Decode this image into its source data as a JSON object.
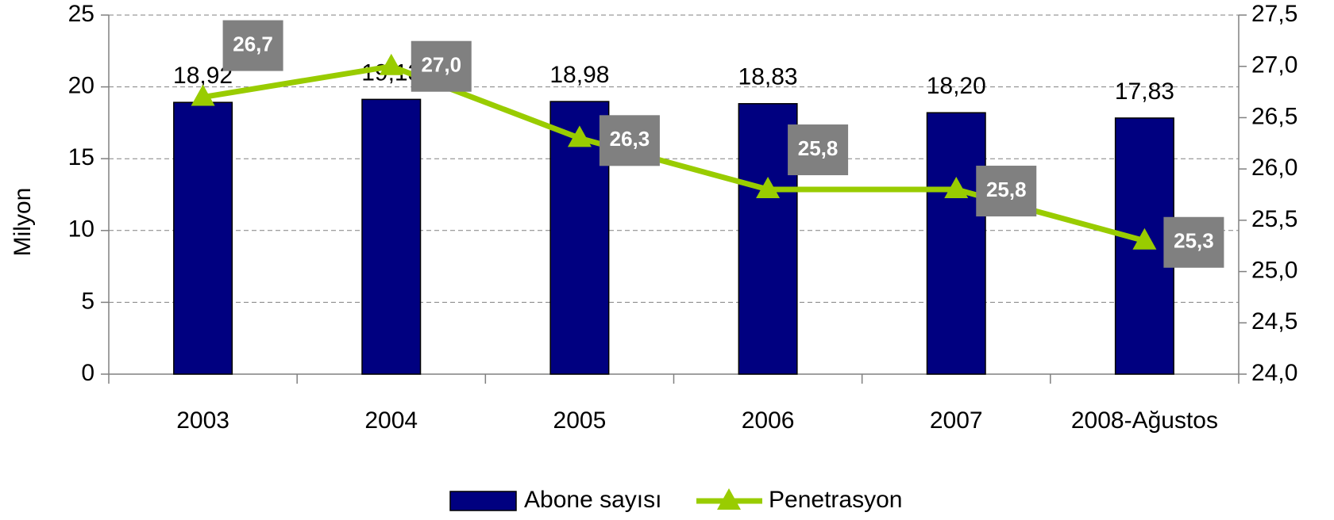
{
  "chart_data": {
    "type": "bar",
    "y_axis_label": "Milyon",
    "categories": [
      "2003",
      "2004",
      "2005",
      "2006",
      "2007",
      "2008-Ağustos"
    ],
    "series": [
      {
        "name": "Abone sayısı",
        "type": "bar",
        "color": "#000080",
        "values": [
          18.92,
          19.13,
          18.98,
          18.83,
          18.2,
          17.83
        ],
        "value_labels": [
          "18,92",
          "19,13",
          "18,98",
          "18,83",
          "18,20",
          "17,83"
        ]
      },
      {
        "name": "Penetrasyon",
        "type": "line",
        "axis": "y2",
        "color": "#99cc00",
        "values": [
          26.7,
          27.0,
          26.3,
          25.8,
          25.8,
          25.3
        ],
        "value_labels": [
          "26,7",
          "27,0",
          "26,3",
          "25,8",
          "25,8",
          "25,3"
        ]
      }
    ],
    "ylim": [
      0,
      25
    ],
    "yticks": [
      0,
      5,
      10,
      15,
      20,
      25
    ],
    "y2lim": [
      24.0,
      27.5
    ],
    "y2ticks": [
      {
        "value": 24.0,
        "label": "24,0"
      },
      {
        "value": 24.5,
        "label": "24,5"
      },
      {
        "value": 25.0,
        "label": "25,0"
      },
      {
        "value": 25.5,
        "label": "25,5"
      },
      {
        "value": 26.0,
        "label": "26,0"
      },
      {
        "value": 26.5,
        "label": "26,5"
      },
      {
        "value": 27.0,
        "label": "27,0"
      },
      {
        "value": 27.5,
        "label": "27,5"
      }
    ],
    "grid": true,
    "legend": "bottom"
  }
}
